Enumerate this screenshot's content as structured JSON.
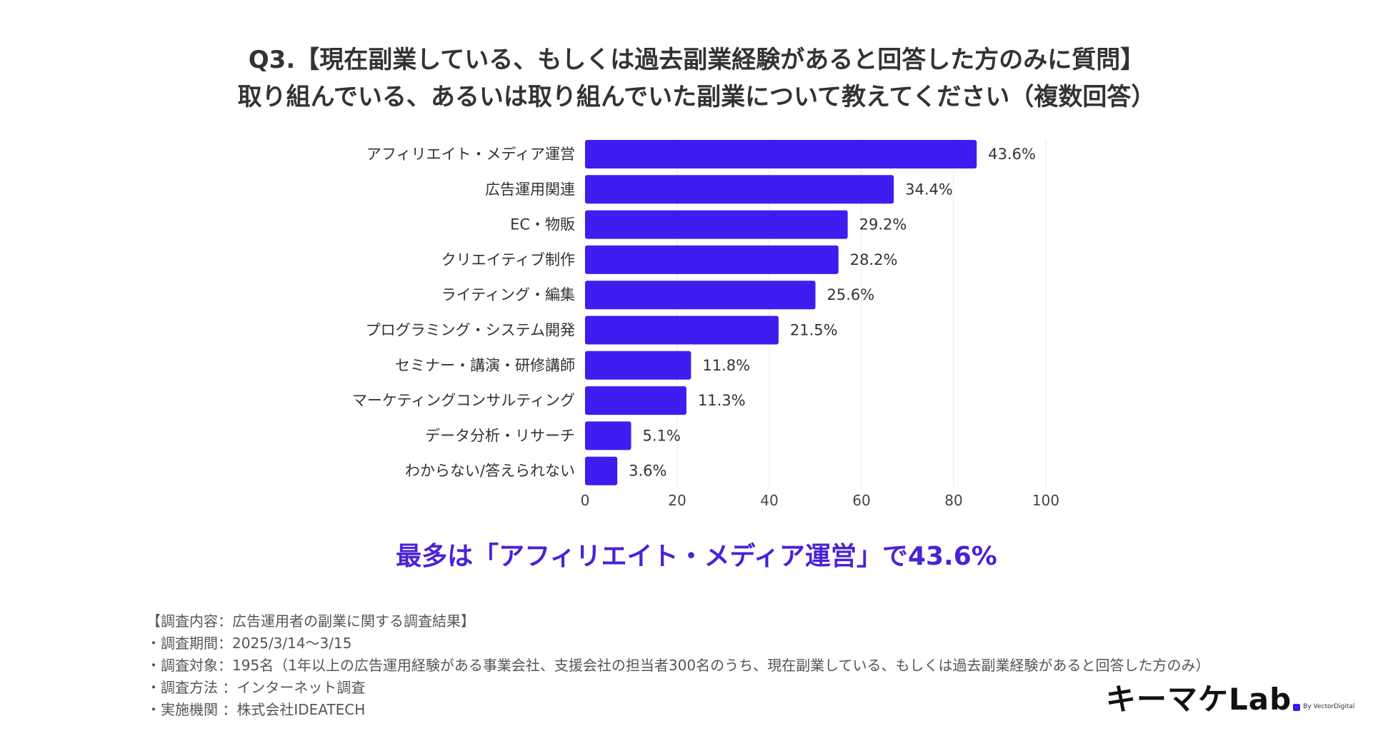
{
  "title": {
    "line1": "Q3.【現在副業している、もしくは過去副業経験があると回答した方のみに質問】",
    "line2": "取り組んでいる、あるいは取り組んでいた副業について教えてください（複数回答）"
  },
  "chart_data": {
    "type": "bar",
    "orientation": "horizontal",
    "categories": [
      "アフィリエイト・メディア運営",
      "広告運用関連",
      "EC・物販",
      "クリエイティブ制作",
      "ライティング・編集",
      "プログラミング・システム開発",
      "セミナー・講演・研修講師",
      "マーケティングコンサルティング",
      "データ分析・リサーチ",
      "わからない/答えられない"
    ],
    "values": [
      85,
      67,
      57,
      55,
      50,
      42,
      23,
      22,
      10,
      7
    ],
    "labels": [
      "43.6%",
      "34.4%",
      "29.2%",
      "28.2%",
      "25.6%",
      "21.5%",
      "11.8%",
      "11.3%",
      "5.1%",
      "3.6%"
    ],
    "xticks": [
      "0",
      "20",
      "40",
      "60",
      "80",
      "100"
    ],
    "xlim": [
      0,
      100
    ],
    "bar_color": "#3f1cf0",
    "grid": true
  },
  "headline": {
    "prefix": "最多は「",
    "highlight": "アフィリエイト・メディア運営",
    "suffix": "」で43.6%",
    "color": "#4a22d6"
  },
  "notes": [
    "【調査内容：広告運用者の副業に関する調査結果】",
    "・調査期間：2025/3/14〜3/15",
    "・調査対象：195名（1年以上の広告運用経験がある事業会社、支援会社の担当者300名のうち、現在副業している、もしくは過去副業経験があると回答した方のみ）",
    "・調査方法 ：インターネット調査",
    "・実施機関 ：株式会社IDEATECH"
  ],
  "logo": {
    "main": "キーマケLab",
    "by": "By VectorDigital"
  }
}
